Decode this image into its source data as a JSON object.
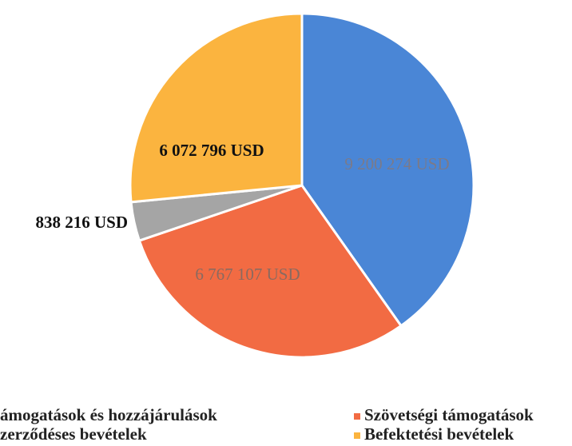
{
  "chart_data": {
    "type": "pie",
    "categories": [
      "ámogatások és hozzájárulások",
      "Szövetségi támogatások",
      "zerződéses bevételek",
      "Befektetési bevételek"
    ],
    "values": [
      9200274,
      6767107,
      838216,
      6072796
    ],
    "value_labels": [
      "9 200 274 USD",
      "6 767 107 USD",
      "838 216 USD",
      "6 072 796 USD"
    ],
    "colors": [
      "#4a86d6",
      "#f26b43",
      "#a5a5a5",
      "#fbb43f"
    ]
  }
}
